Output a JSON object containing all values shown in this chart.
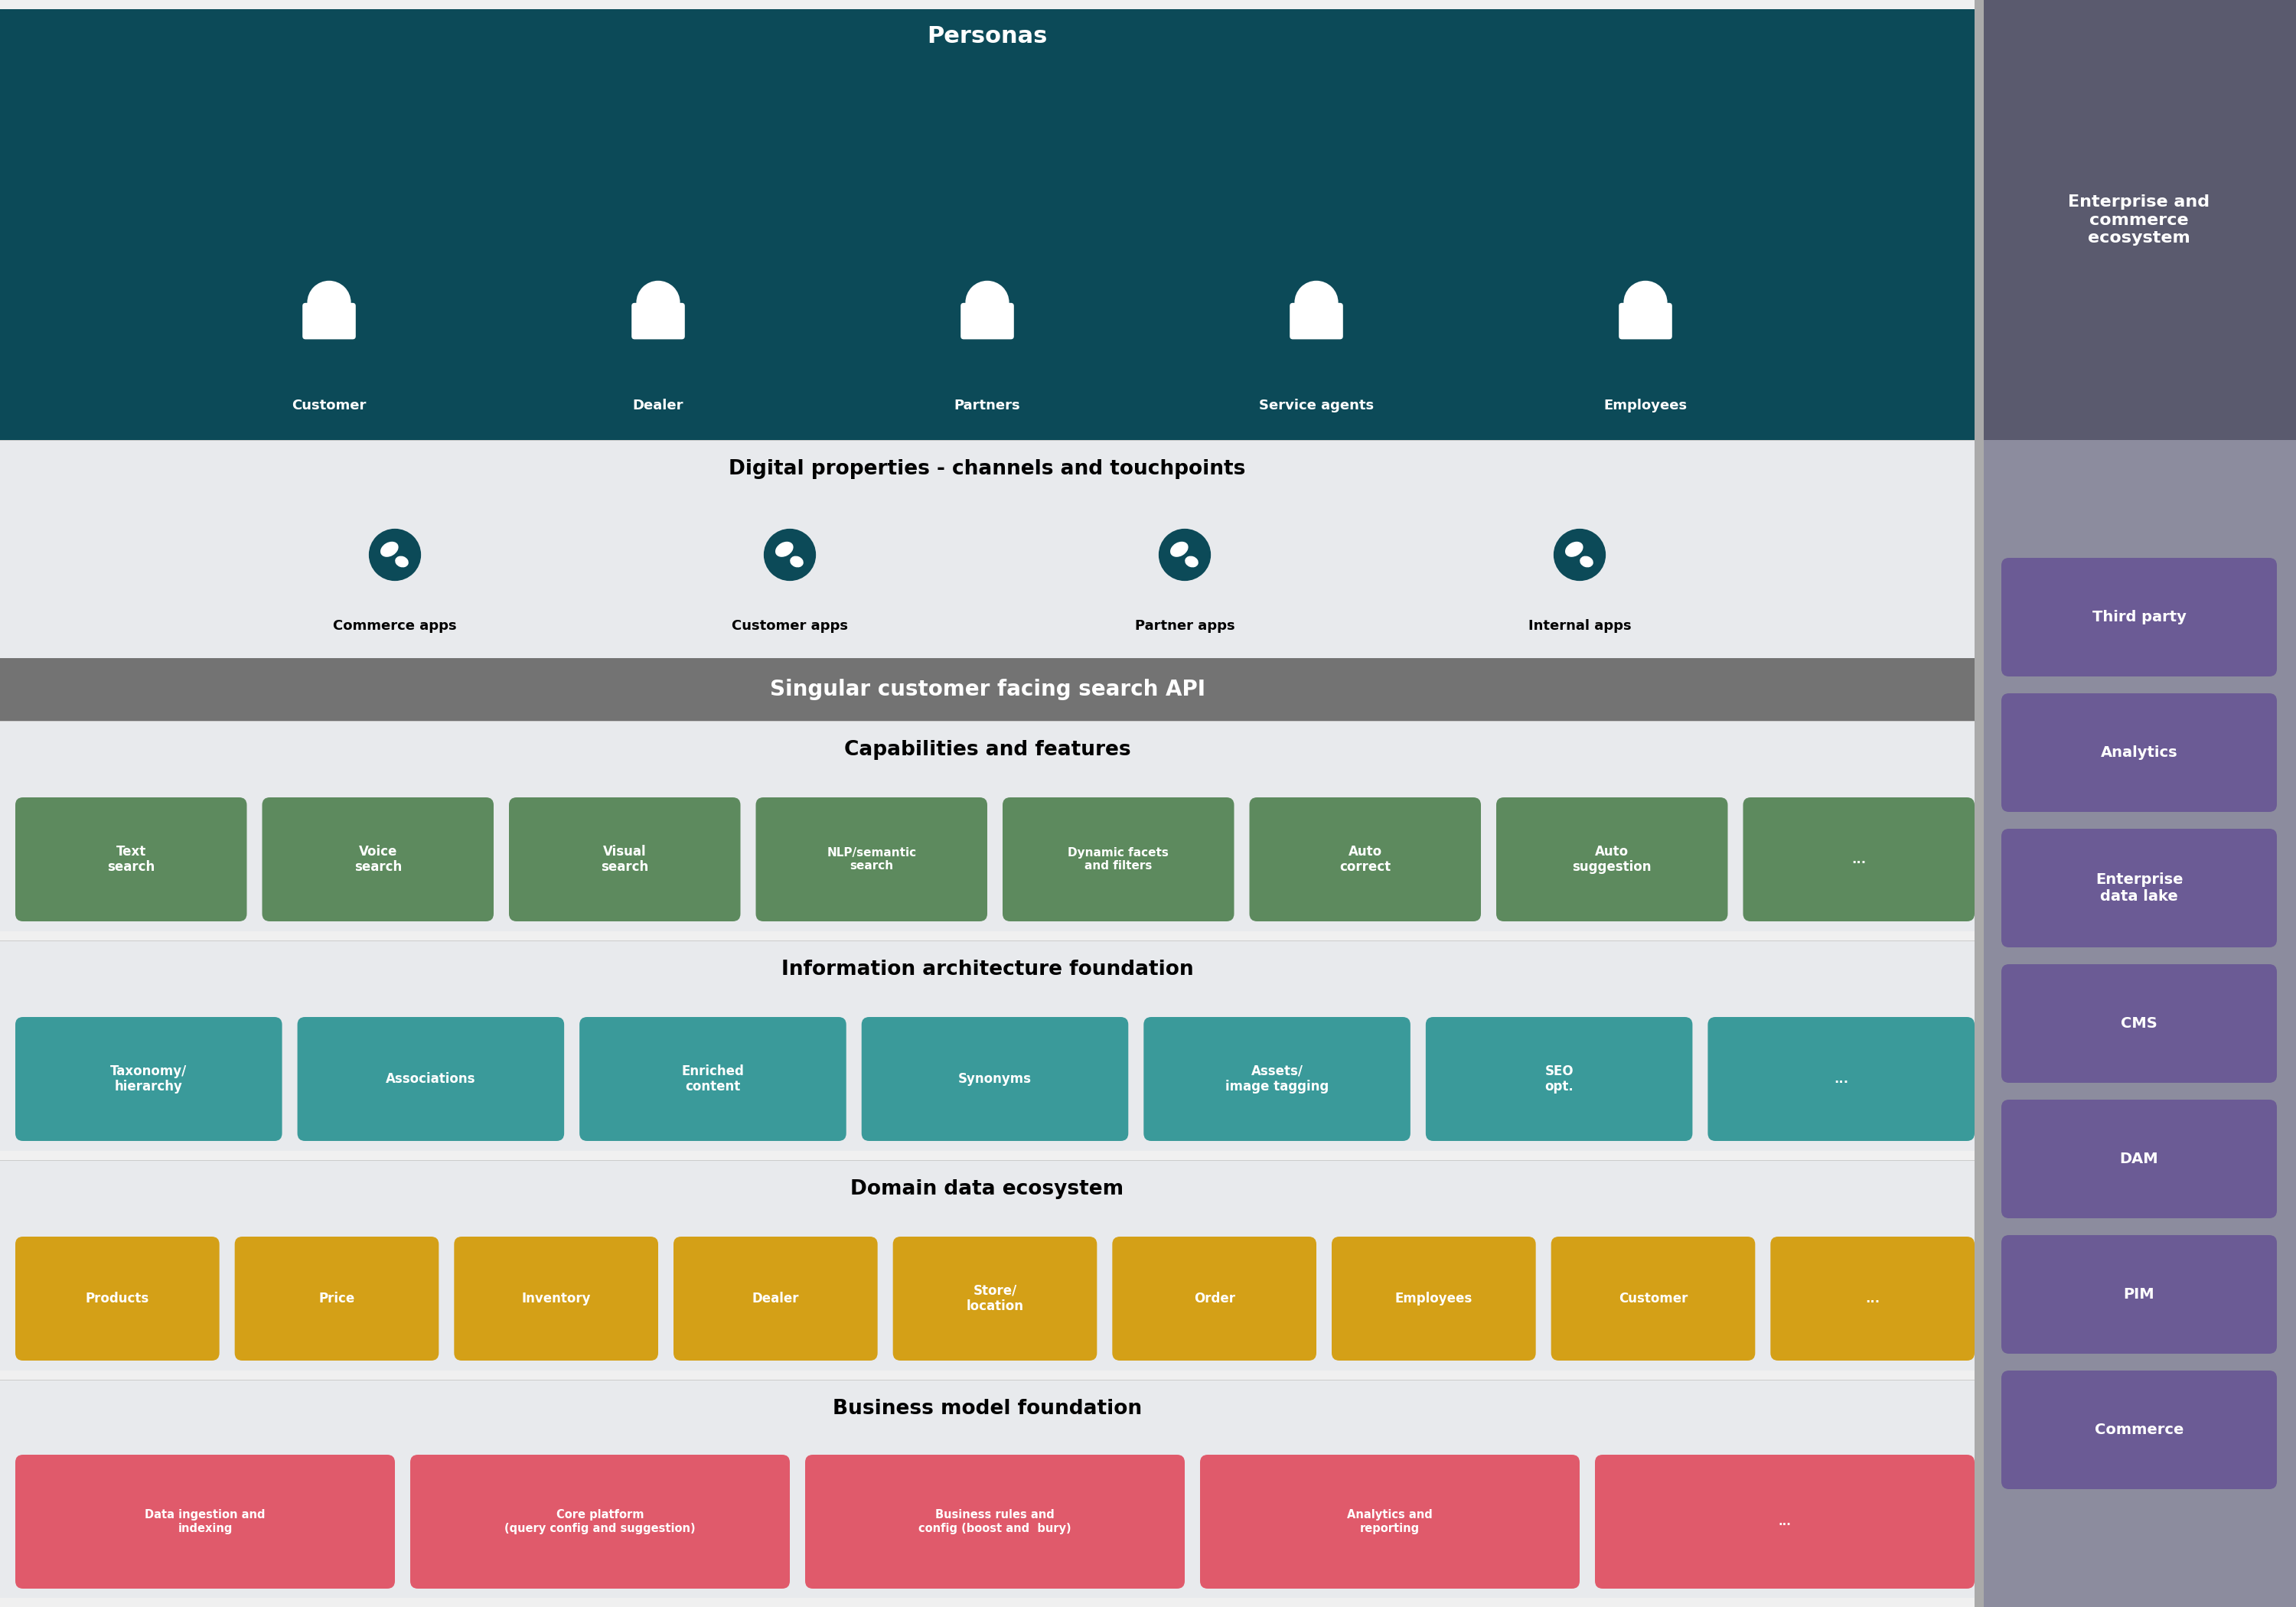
{
  "fig_width": 30,
  "fig_height": 21,
  "bg_color": "#f0f0f0",
  "personas_bg": "#0c4a58",
  "personas_title": "Personas",
  "personas_items": [
    "Customer",
    "Dealer",
    "Partners",
    "Service agents",
    "Employees"
  ],
  "right_panel_header_bg": "#5a5a6e",
  "right_panel_body_bg": "#8c8c9e",
  "right_panel_title": "Enterprise and\ncommerce\necosystem",
  "right_panel_items": [
    "Commerce",
    "PIM",
    "DAM",
    "CMS",
    "Enterprise\ndata lake",
    "Analytics",
    "Third party"
  ],
  "right_panel_color": "#6b5b95",
  "digital_bg": "#e8eaed",
  "digital_title": "Digital properties - channels and touchpoints",
  "digital_items": [
    "Commerce apps",
    "Customer apps",
    "Partner apps",
    "Internal apps"
  ],
  "api_bg": "#737373",
  "api_text": "Singular customer facing search API",
  "capabilities_bg": "#e8eaed",
  "capabilities_title": "Capabilities and features",
  "capabilities_items": [
    "Text\nsearch",
    "Voice\nsearch",
    "Visual\nsearch",
    "NLP/semantic\nsearch",
    "Dynamic facets\nand filters",
    "Auto\ncorrect",
    "Auto\nsuggestion",
    "..."
  ],
  "capabilities_color": "#5d8a5e",
  "info_arch_bg": "#e8eaed",
  "info_arch_title": "Information architecture foundation",
  "info_arch_items": [
    "Taxonomy/\nhierarchy",
    "Associations",
    "Enriched\ncontent",
    "Synonyms",
    "Assets/\nimage tagging",
    "SEO\nopt.",
    "..."
  ],
  "info_arch_color": "#3a9a9a",
  "domain_bg": "#e8eaed",
  "domain_title": "Domain data ecosystem",
  "domain_items": [
    "Products",
    "Price",
    "Inventory",
    "Dealer",
    "Store/\nlocation",
    "Order",
    "Employees",
    "Customer",
    "..."
  ],
  "domain_color": "#d4a017",
  "business_bg": "#e8eaed",
  "business_title": "Business model foundation",
  "business_items": [
    "Data ingestion and\nindexing",
    "Core platform\n(query config and suggestion)",
    "Business rules and\nconfig (boost and  bury)",
    "Analytics and\nreporting",
    "..."
  ],
  "business_color": "#e05a6b",
  "section_sep_color": "#cccccc",
  "icon_color": "#0c4a58",
  "globe_border_color": "#0c4a58"
}
